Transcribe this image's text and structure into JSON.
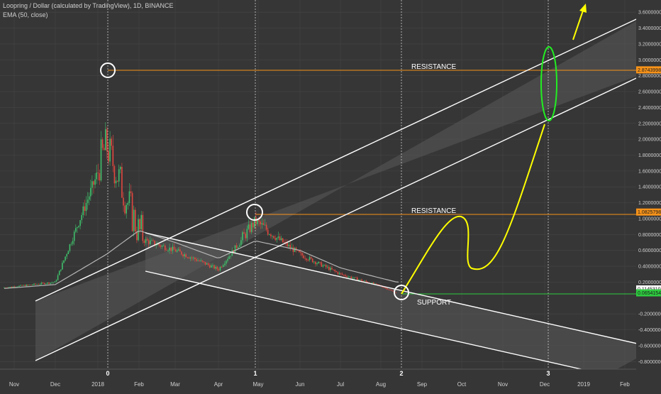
{
  "header": {
    "title": "Loopring / Dollar (calculated by TradingView), 1D, BINANCE",
    "indicator": "EMA (50, close)"
  },
  "colors": {
    "background": "#363636",
    "grid": "#454545",
    "candle_up": "#3fbf6a",
    "candle_down": "#e0473f",
    "ema": "#b5b5b5",
    "channel_line": "#ffffff",
    "channel_fill": "#5a5a5a",
    "resistance": "#f7931a",
    "support": "#2ecc40",
    "projection": "#ffff00",
    "target_ellipse": "#22ee22",
    "marker_circle": "#ffffff"
  },
  "chart_data": {
    "type": "candlestick",
    "x": [
      "Nov",
      "Dec",
      "2018",
      "Feb",
      "Mar",
      "Apr",
      "May",
      "Jun",
      "Jul",
      "Aug",
      "Sep",
      "Oct",
      "Nov",
      "Dec",
      "2019",
      "Feb"
    ],
    "y_ticks": [
      "3.6000000",
      "3.4000000",
      "3.2000000",
      "3.0000000",
      "2.8000000",
      "2.6000000",
      "2.4000000",
      "2.2000000",
      "2.0000000",
      "1.8000000",
      "1.6000000",
      "1.4000000",
      "1.2000000",
      "1.0000000",
      "0.8000000",
      "0.6000000",
      "0.4000000",
      "0.2000000",
      "-0.2000000",
      "-0.4000000",
      "-0.6000000",
      "-0.8000000"
    ],
    "y_range": [
      -0.86,
      3.7
    ],
    "price_tags": [
      {
        "label": "2.8743998",
        "value": 2.874,
        "kind": "resistance"
      },
      {
        "label": "1.0825798",
        "value": 1.083,
        "kind": "resistance"
      },
      {
        "label": "0.1145310",
        "value": 0.1145,
        "kind": "price"
      },
      {
        "label": "0.0654154",
        "value": 0.0654,
        "kind": "support"
      }
    ],
    "series": [
      {
        "kind": "close",
        "points": [
          [
            "Nov",
            0.13
          ],
          [
            "Dec",
            0.2
          ],
          [
            "2018",
            1.85
          ],
          [
            "Feb",
            0.75
          ],
          [
            "Mar",
            0.6
          ],
          [
            "Apr",
            0.36
          ],
          [
            "May",
            0.95
          ],
          [
            "Jun",
            0.55
          ],
          [
            "Jul",
            0.3
          ],
          [
            "Aug",
            0.15
          ],
          [
            "Aug",
            0.06
          ]
        ]
      },
      {
        "kind": "ema",
        "points": [
          [
            "Nov",
            0.12
          ],
          [
            "Dec",
            0.17
          ],
          [
            "2018",
            0.55
          ],
          [
            "Feb",
            0.85
          ],
          [
            "Mar",
            0.7
          ],
          [
            "Apr",
            0.5
          ],
          [
            "May",
            0.72
          ],
          [
            "Jun",
            0.6
          ],
          [
            "Jul",
            0.38
          ],
          [
            "Aug",
            0.25
          ],
          [
            "Aug",
            0.2
          ]
        ]
      }
    ],
    "annotations": {
      "resistance_labels": [
        "RESISTANCE",
        "RESISTANCE"
      ],
      "support_label": "SUPPORT",
      "cycle_markers": [
        "0",
        "1",
        "2",
        "3"
      ]
    }
  }
}
